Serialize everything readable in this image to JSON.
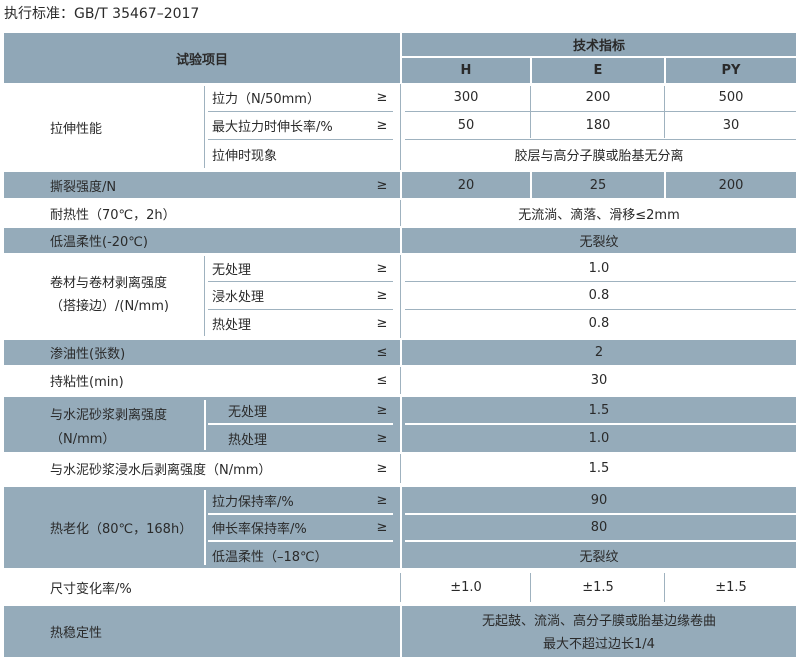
{
  "standard": "执行标准：GB/T 35467–2017",
  "header": {
    "item": "试验项目",
    "spec": "技术指标",
    "cols": [
      "H",
      "E",
      "PY"
    ]
  },
  "rows": {
    "tensile": {
      "name": "拉伸性能",
      "subs": [
        {
          "label": "拉力（N/50mm）",
          "sign": "≥",
          "values": [
            "300",
            "200",
            "500"
          ]
        },
        {
          "label": "最大拉力时伸长率/%",
          "sign": "≥",
          "values": [
            "50",
            "180",
            "30"
          ]
        },
        {
          "label": "拉伸时现象",
          "value": "胶层与高分子膜或胎基无分离"
        }
      ]
    },
    "tear": {
      "name": "撕裂强度/N",
      "sign": "≥",
      "values": [
        "20",
        "25",
        "200"
      ]
    },
    "heat": {
      "name": "耐热性（70℃，2h）",
      "value": "无流淌、滴落、滑移≤2mm"
    },
    "lowtemp": {
      "name": "低温柔性(-20℃)",
      "value": "无裂纹"
    },
    "peel": {
      "name1": "卷材与卷材剥离强度",
      "name2": "（搭接边）/(N/mm)",
      "subs": [
        {
          "label": "无处理",
          "sign": "≥",
          "value": "1.0"
        },
        {
          "label": "浸水处理",
          "sign": "≥",
          "value": "0.8"
        },
        {
          "label": "热处理",
          "sign": "≥",
          "value": "0.8"
        }
      ]
    },
    "oil": {
      "name": "渗油性(张数)",
      "sign": "≤",
      "value": "2"
    },
    "hold": {
      "name": "持粘性(min)",
      "sign": "≤",
      "value": "30"
    },
    "mortar": {
      "name1": "与水泥砂浆剥离强度",
      "name2": "（N/mm）",
      "subs": [
        {
          "label": "无处理",
          "sign": "≥",
          "value": "1.5"
        },
        {
          "label": "热处理",
          "sign": "≥",
          "value": "1.0"
        }
      ]
    },
    "mortarwet": {
      "name": "与水泥砂浆浸水后剥离强度（N/mm）",
      "sign": "≥",
      "value": "1.5"
    },
    "aging": {
      "name": "热老化（80℃，168h）",
      "subs": [
        {
          "label": "拉力保持率/%",
          "sign": "≥",
          "value": "90"
        },
        {
          "label": "伸长率保持率/%",
          "sign": "≥",
          "value": "80"
        },
        {
          "label": "低温柔性（–18℃）",
          "value": "无裂纹"
        }
      ]
    },
    "dim": {
      "name": "尺寸变化率/%",
      "values": [
        "±1.0",
        "±1.5",
        "±1.5"
      ]
    },
    "stab": {
      "name": "热稳定性",
      "line1": "无起鼓、流淌、高分子膜或胎基边缘卷曲",
      "line2": "最大不超过边长1/4"
    }
  },
  "colors": {
    "band": "#95abba",
    "header": "#90a7b7"
  }
}
